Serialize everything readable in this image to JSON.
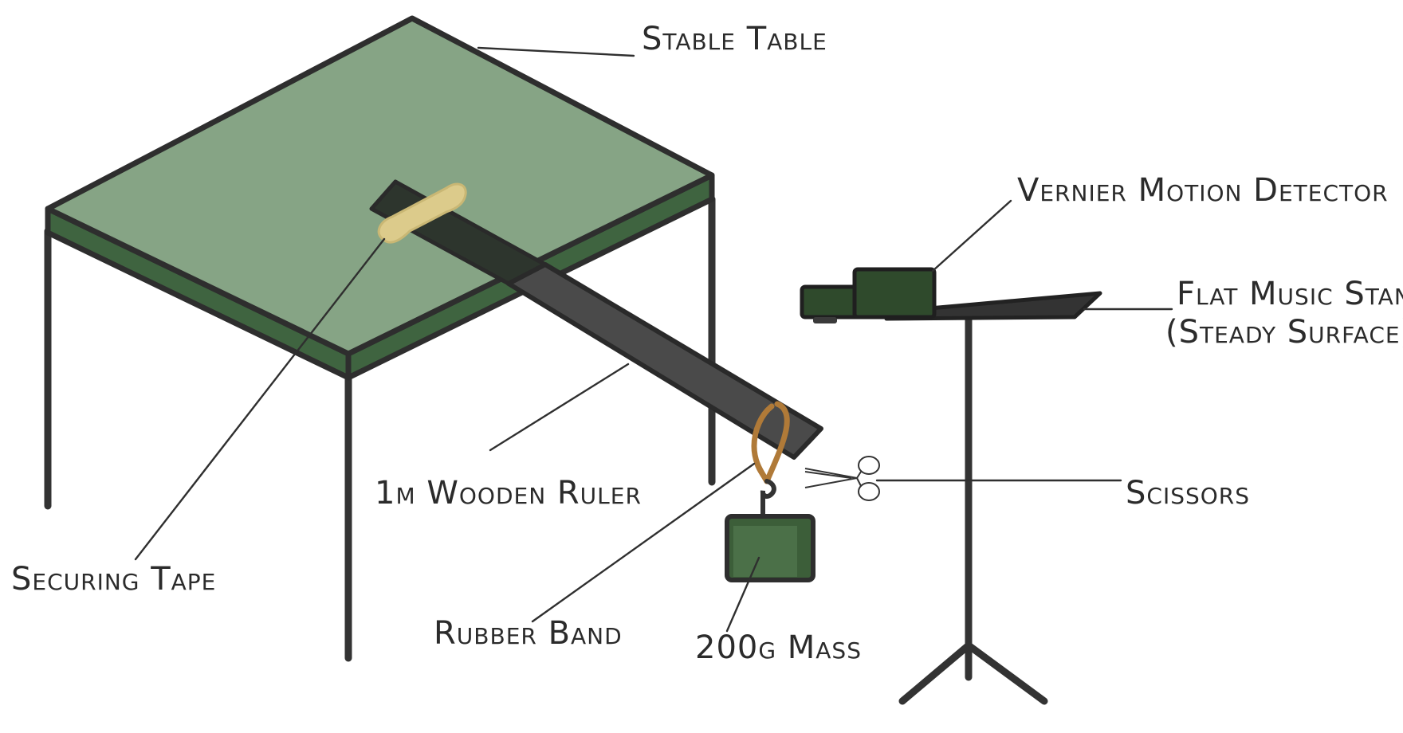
{
  "labels": {
    "stable_table": "Stable Table",
    "motion_detector": "Vernier Motion Detector",
    "music_stand_line1": "Flat Music Stand",
    "music_stand_line2": "(Steady Surface)",
    "ruler": "1m Wooden Ruler",
    "scissors": "Scissors",
    "securing_tape": "Securing Tape",
    "rubber_band": "Rubber Band",
    "mass": "200g Mass"
  },
  "colors": {
    "table_top": "#86a485",
    "table_side": "#3f6440",
    "outline": "#2e2e2e",
    "ruler": "#4a4a4a",
    "ruler_dark": "#2d352d",
    "tape": "#dccb8b",
    "rubber_band": "#b07a38",
    "mass": "#3c5e39",
    "detector": "#2f4a2c",
    "stand": "#333333"
  }
}
